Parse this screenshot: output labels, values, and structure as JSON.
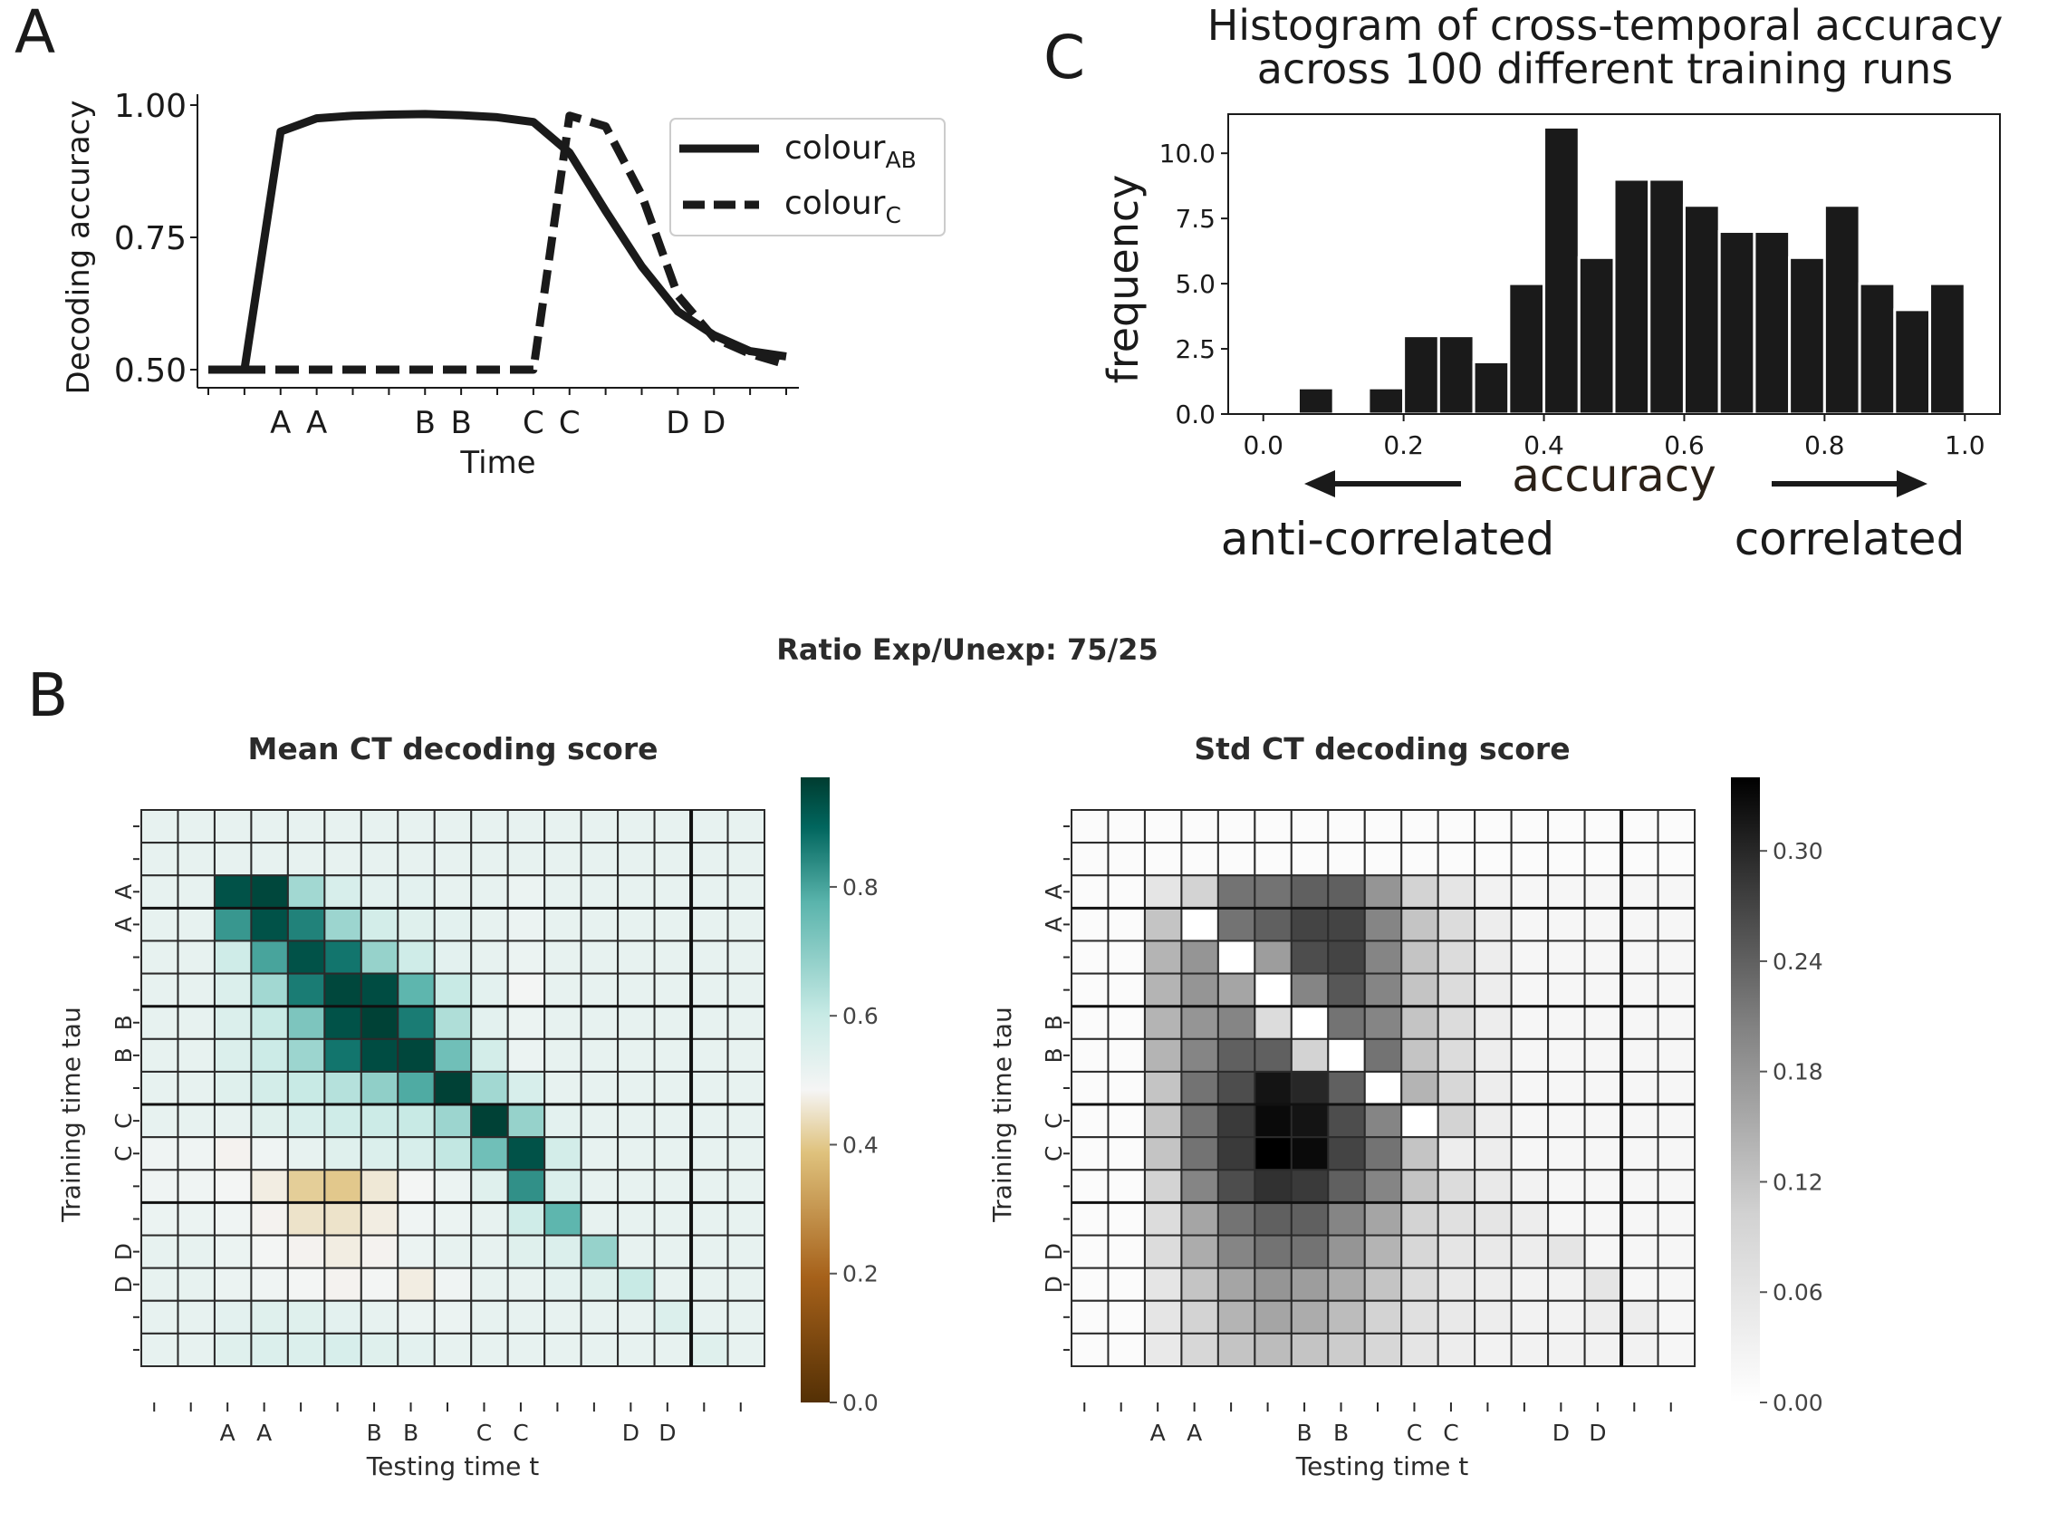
{
  "panels": {
    "A": "A",
    "B": "B",
    "C": "C"
  },
  "chart_data": [
    {
      "id": "A",
      "type": "line",
      "title": "",
      "xlabel": "Time",
      "ylabel": "Decoding accuracy",
      "ylim": [
        0.5,
        1.0
      ],
      "yticks": [
        0.5,
        0.75,
        1.0
      ],
      "ytick_labels": [
        "0.50",
        "0.75",
        "1.00"
      ],
      "x": [
        0,
        1,
        2,
        3,
        4,
        5,
        6,
        7,
        8,
        9,
        10,
        11,
        12,
        13,
        14,
        15,
        16
      ],
      "xtick_labels": [
        "",
        "",
        "A",
        "A",
        "",
        "",
        "B",
        "B",
        "",
        "C",
        "C",
        "",
        "",
        "D",
        "D",
        "",
        ""
      ],
      "legend_position": "top-right",
      "series": [
        {
          "name": "colour",
          "name_sub": "AB",
          "style": "solid",
          "values": [
            0.5,
            0.5,
            0.95,
            0.975,
            0.98,
            0.982,
            0.983,
            0.981,
            0.977,
            0.968,
            0.91,
            0.8,
            0.695,
            0.61,
            0.565,
            0.535,
            0.525
          ]
        },
        {
          "name": "colour",
          "name_sub": "C",
          "style": "dashed",
          "values": [
            0.5,
            0.5,
            0.5,
            0.5,
            0.5,
            0.5,
            0.5,
            0.5,
            0.5,
            0.5,
            0.98,
            0.96,
            0.83,
            0.64,
            0.56,
            0.53,
            0.51
          ]
        }
      ]
    },
    {
      "id": "C",
      "type": "bar",
      "title_lines": [
        "Histogram of cross-temporal accuracy",
        "across 100 different training runs"
      ],
      "xlabel": "accuracy",
      "ylabel": "frequency",
      "xlim": [
        -0.05,
        1.05
      ],
      "ylim": [
        0,
        11.5
      ],
      "xticks": [
        0.0,
        0.2,
        0.4,
        0.6,
        0.8,
        1.0
      ],
      "xtick_labels": [
        "0.0",
        "0.2",
        "0.4",
        "0.6",
        "0.8",
        "1.0"
      ],
      "yticks": [
        0,
        2.5,
        5,
        7.5,
        10
      ],
      "ytick_labels": [
        "0.0",
        "2.5",
        "5.0",
        "7.5",
        "10.0"
      ],
      "bin_starts": [
        0.05,
        0.15,
        0.2,
        0.25,
        0.3,
        0.35,
        0.4,
        0.45,
        0.5,
        0.55,
        0.6,
        0.65,
        0.7,
        0.75,
        0.8,
        0.85,
        0.9,
        0.95
      ],
      "bin_width": 0.05,
      "values": [
        1,
        1,
        3,
        3,
        2,
        5,
        11,
        6,
        9,
        9,
        8,
        7,
        7,
        6,
        8,
        5,
        4,
        5
      ],
      "annotations": {
        "left": "anti-correlated",
        "right": "correlated"
      }
    },
    {
      "id": "B",
      "suptitle": "Ratio Exp/Unexp: 75/25",
      "heatmaps": [
        {
          "title": "Mean CT decoding score",
          "type": "heatmap",
          "cmap": "BrBG",
          "xlabel": "Testing time t",
          "ylabel": "Training time tau",
          "tick_labels": [
            "",
            "",
            "A",
            "A",
            "",
            "",
            "B",
            "B",
            "",
            "C",
            "C",
            "",
            "",
            "D",
            "D",
            "",
            ""
          ],
          "colorbar_range": [
            0.0,
            0.97
          ],
          "colorbar_ticks": [
            0.0,
            0.2,
            0.4,
            0.6,
            0.8
          ],
          "colorbar_tick_labels": [
            "0.0",
            "0.2",
            "0.4",
            "0.6",
            "0.8"
          ],
          "values": [
            [
              0.52,
              0.52,
              0.52,
              0.52,
              0.52,
              0.52,
              0.52,
              0.52,
              0.52,
              0.52,
              0.52,
              0.52,
              0.52,
              0.52,
              0.52,
              0.52,
              0.52
            ],
            [
              0.52,
              0.52,
              0.52,
              0.52,
              0.52,
              0.52,
              0.52,
              0.52,
              0.52,
              0.52,
              0.52,
              0.52,
              0.52,
              0.52,
              0.52,
              0.52,
              0.52
            ],
            [
              0.52,
              0.52,
              0.93,
              0.95,
              0.66,
              0.56,
              0.53,
              0.53,
              0.52,
              0.52,
              0.51,
              0.52,
              0.52,
              0.52,
              0.52,
              0.52,
              0.52
            ],
            [
              0.52,
              0.52,
              0.82,
              0.93,
              0.85,
              0.67,
              0.57,
              0.54,
              0.53,
              0.52,
              0.51,
              0.52,
              0.52,
              0.52,
              0.52,
              0.52,
              0.52
            ],
            [
              0.52,
              0.52,
              0.58,
              0.8,
              0.93,
              0.87,
              0.68,
              0.58,
              0.53,
              0.52,
              0.51,
              0.52,
              0.52,
              0.52,
              0.52,
              0.52,
              0.52
            ],
            [
              0.52,
              0.52,
              0.55,
              0.66,
              0.86,
              0.95,
              0.94,
              0.77,
              0.6,
              0.53,
              0.49,
              0.52,
              0.52,
              0.52,
              0.52,
              0.52,
              0.52
            ],
            [
              0.52,
              0.52,
              0.55,
              0.6,
              0.72,
              0.93,
              0.96,
              0.86,
              0.64,
              0.53,
              0.51,
              0.52,
              0.52,
              0.52,
              0.52,
              0.52,
              0.52
            ],
            [
              0.52,
              0.52,
              0.55,
              0.59,
              0.67,
              0.87,
              0.94,
              0.95,
              0.74,
              0.57,
              0.51,
              0.52,
              0.52,
              0.52,
              0.52,
              0.52,
              0.52
            ],
            [
              0.52,
              0.52,
              0.54,
              0.57,
              0.6,
              0.63,
              0.69,
              0.79,
              0.96,
              0.66,
              0.56,
              0.52,
              0.52,
              0.52,
              0.52,
              0.52,
              0.52
            ],
            [
              0.52,
              0.52,
              0.52,
              0.54,
              0.56,
              0.58,
              0.59,
              0.6,
              0.67,
              0.96,
              0.68,
              0.53,
              0.52,
              0.52,
              0.52,
              0.52,
              0.52
            ],
            [
              0.5,
              0.5,
              0.48,
              0.5,
              0.52,
              0.54,
              0.55,
              0.56,
              0.61,
              0.74,
              0.93,
              0.57,
              0.52,
              0.52,
              0.52,
              0.52,
              0.52
            ],
            [
              0.5,
              0.5,
              0.49,
              0.47,
              0.41,
              0.4,
              0.46,
              0.49,
              0.51,
              0.54,
              0.83,
              0.55,
              0.52,
              0.52,
              0.52,
              0.52,
              0.52
            ],
            [
              0.51,
              0.51,
              0.5,
              0.48,
              0.45,
              0.45,
              0.47,
              0.5,
              0.51,
              0.52,
              0.58,
              0.77,
              0.52,
              0.52,
              0.52,
              0.52,
              0.52
            ],
            [
              0.52,
              0.52,
              0.51,
              0.49,
              0.48,
              0.47,
              0.48,
              0.51,
              0.52,
              0.52,
              0.54,
              0.55,
              0.68,
              0.52,
              0.52,
              0.52,
              0.52
            ],
            [
              0.52,
              0.52,
              0.51,
              0.5,
              0.49,
              0.48,
              0.49,
              0.47,
              0.5,
              0.52,
              0.52,
              0.53,
              0.54,
              0.6,
              0.52,
              0.52,
              0.52
            ],
            [
              0.52,
              0.52,
              0.53,
              0.54,
              0.54,
              0.53,
              0.52,
              0.51,
              0.51,
              0.52,
              0.52,
              0.52,
              0.52,
              0.52,
              0.55,
              0.52,
              0.52
            ],
            [
              0.52,
              0.52,
              0.54,
              0.55,
              0.55,
              0.56,
              0.54,
              0.53,
              0.52,
              0.52,
              0.52,
              0.52,
              0.52,
              0.52,
              0.52,
              0.54,
              0.52
            ]
          ]
        },
        {
          "title": "Std CT decoding score",
          "type": "heatmap",
          "cmap": "Greys",
          "xlabel": "Testing time t",
          "ylabel": "Training time tau",
          "tick_labels": [
            "",
            "",
            "A",
            "A",
            "",
            "",
            "B",
            "B",
            "",
            "C",
            "C",
            "",
            "",
            "D",
            "D",
            "",
            ""
          ],
          "colorbar_range": [
            0.0,
            0.34
          ],
          "colorbar_ticks": [
            0.0,
            0.06,
            0.12,
            0.18,
            0.24,
            0.3
          ],
          "colorbar_tick_labels": [
            "0.00",
            "0.06",
            "0.12",
            "0.18",
            "0.24",
            "0.30"
          ],
          "values": [
            [
              0.01,
              0.01,
              0.01,
              0.01,
              0.01,
              0.01,
              0.01,
              0.01,
              0.01,
              0.01,
              0.01,
              0.01,
              0.01,
              0.01,
              0.01,
              0.01,
              0.01
            ],
            [
              0.01,
              0.01,
              0.01,
              0.01,
              0.01,
              0.01,
              0.01,
              0.01,
              0.01,
              0.01,
              0.01,
              0.01,
              0.01,
              0.01,
              0.01,
              0.01,
              0.01
            ],
            [
              0.01,
              0.01,
              0.06,
              0.1,
              0.22,
              0.22,
              0.24,
              0.24,
              0.18,
              0.1,
              0.06,
              0.03,
              0.02,
              0.02,
              0.02,
              0.02,
              0.02
            ],
            [
              0.01,
              0.01,
              0.12,
              0.0,
              0.22,
              0.24,
              0.27,
              0.27,
              0.2,
              0.12,
              0.08,
              0.04,
              0.02,
              0.02,
              0.02,
              0.02,
              0.02
            ],
            [
              0.01,
              0.01,
              0.14,
              0.18,
              0.0,
              0.17,
              0.26,
              0.27,
              0.2,
              0.12,
              0.08,
              0.04,
              0.02,
              0.02,
              0.02,
              0.02,
              0.02
            ],
            [
              0.01,
              0.01,
              0.14,
              0.18,
              0.16,
              0.0,
              0.2,
              0.25,
              0.2,
              0.12,
              0.08,
              0.04,
              0.02,
              0.02,
              0.02,
              0.02,
              0.02
            ],
            [
              0.01,
              0.01,
              0.14,
              0.18,
              0.2,
              0.08,
              0.0,
              0.22,
              0.2,
              0.12,
              0.08,
              0.04,
              0.02,
              0.02,
              0.02,
              0.02,
              0.02
            ],
            [
              0.01,
              0.01,
              0.14,
              0.2,
              0.24,
              0.24,
              0.1,
              0.0,
              0.22,
              0.12,
              0.08,
              0.04,
              0.02,
              0.02,
              0.02,
              0.02,
              0.02
            ],
            [
              0.01,
              0.01,
              0.12,
              0.22,
              0.26,
              0.32,
              0.3,
              0.24,
              0.0,
              0.14,
              0.09,
              0.04,
              0.02,
              0.02,
              0.02,
              0.02,
              0.02
            ],
            [
              0.01,
              0.01,
              0.12,
              0.22,
              0.28,
              0.33,
              0.32,
              0.26,
              0.2,
              0.0,
              0.1,
              0.04,
              0.02,
              0.02,
              0.02,
              0.02,
              0.02
            ],
            [
              0.01,
              0.01,
              0.12,
              0.22,
              0.28,
              0.34,
              0.33,
              0.27,
              0.22,
              0.12,
              0.04,
              0.04,
              0.02,
              0.02,
              0.02,
              0.02,
              0.02
            ],
            [
              0.01,
              0.01,
              0.1,
              0.2,
              0.26,
              0.29,
              0.28,
              0.24,
              0.2,
              0.12,
              0.08,
              0.05,
              0.03,
              0.02,
              0.02,
              0.02,
              0.02
            ],
            [
              0.01,
              0.01,
              0.08,
              0.16,
              0.22,
              0.24,
              0.24,
              0.2,
              0.16,
              0.1,
              0.07,
              0.06,
              0.04,
              0.02,
              0.02,
              0.02,
              0.02
            ],
            [
              0.01,
              0.01,
              0.08,
              0.15,
              0.2,
              0.22,
              0.22,
              0.18,
              0.14,
              0.09,
              0.06,
              0.05,
              0.04,
              0.06,
              0.02,
              0.02,
              0.02
            ],
            [
              0.01,
              0.01,
              0.06,
              0.12,
              0.16,
              0.18,
              0.17,
              0.15,
              0.12,
              0.08,
              0.05,
              0.04,
              0.03,
              0.03,
              0.06,
              0.02,
              0.02
            ],
            [
              0.01,
              0.01,
              0.06,
              0.1,
              0.14,
              0.16,
              0.15,
              0.13,
              0.1,
              0.07,
              0.05,
              0.04,
              0.03,
              0.03,
              0.04,
              0.04,
              0.02
            ],
            [
              0.01,
              0.01,
              0.05,
              0.09,
              0.12,
              0.13,
              0.12,
              0.11,
              0.09,
              0.06,
              0.04,
              0.03,
              0.03,
              0.03,
              0.03,
              0.03,
              0.02
            ]
          ]
        }
      ]
    }
  ]
}
